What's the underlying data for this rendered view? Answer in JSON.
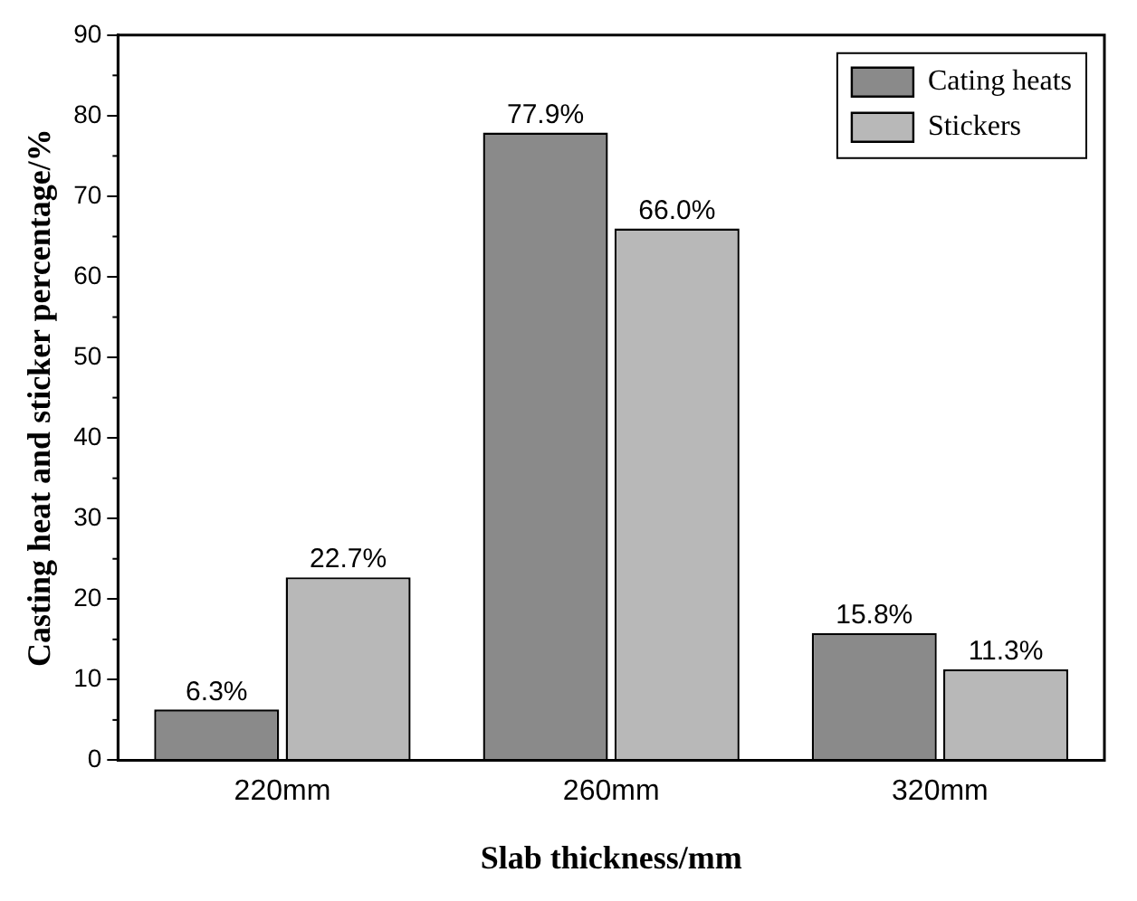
{
  "chart_data": {
    "type": "bar",
    "xlabel": "Slab thickness/mm",
    "ylabel": "Casting heat and sticker percentage/%",
    "categories": [
      "220mm",
      "260mm",
      "320mm"
    ],
    "series": [
      {
        "name": "Cating heats",
        "color": "#8a8a8a",
        "values": [
          6.3,
          77.9,
          15.8
        ],
        "value_labels": [
          "6.3%",
          "77.9%",
          "15.8%"
        ]
      },
      {
        "name": "Stickers",
        "color": "#b8b8b8",
        "values": [
          22.7,
          66.0,
          11.3
        ],
        "value_labels": [
          "22.7%",
          "66.0%",
          "11.3%"
        ]
      }
    ],
    "ylim": [
      0,
      90
    ],
    "yticks": [
      0,
      10,
      20,
      30,
      40,
      50,
      60,
      70,
      80,
      90
    ],
    "legend": "top right"
  }
}
